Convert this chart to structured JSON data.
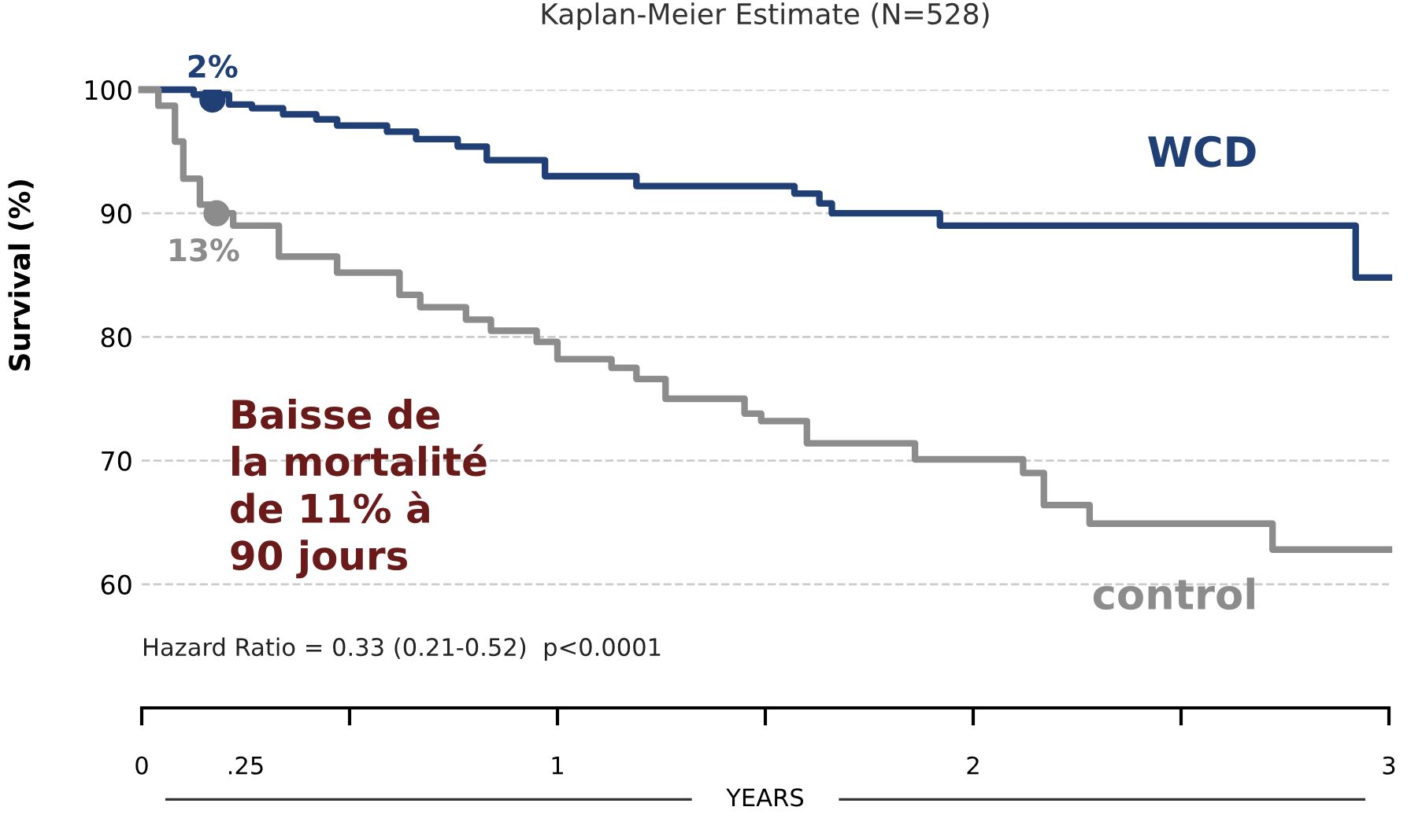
{
  "chart_data": {
    "type": "step",
    "title": "Kaplan-Meier Estimate (N=528)",
    "ylabel": "Survival (%)",
    "xlabel": "YEARS",
    "series": [
      {
        "name": "WCD",
        "color": "#1f3f75",
        "x": [
          0,
          0.125,
          0.21,
          0.265,
          0.34,
          0.42,
          0.47,
          0.59,
          0.66,
          0.76,
          0.83,
          0.97,
          1.19,
          1.57,
          1.63,
          1.66,
          1.92,
          2.92,
          3.0
        ],
        "values": [
          100,
          99.6,
          98.8,
          98.5,
          98.0,
          97.6,
          97.1,
          96.6,
          96.0,
          95.4,
          94.3,
          93.0,
          92.2,
          91.6,
          90.8,
          90.0,
          89.0,
          84.8,
          84.8
        ]
      },
      {
        "name": "control",
        "color": "#8c8c8c",
        "x": [
          0,
          0.04,
          0.08,
          0.1,
          0.14,
          0.18,
          0.22,
          0.33,
          0.47,
          0.62,
          0.67,
          0.78,
          0.84,
          0.95,
          1.0,
          1.13,
          1.19,
          1.26,
          1.45,
          1.49,
          1.6,
          1.86,
          2.12,
          2.17,
          2.28,
          2.72,
          3.0
        ],
        "values": [
          100,
          98.7,
          95.8,
          92.8,
          90.7,
          90.0,
          89.0,
          86.5,
          85.2,
          83.4,
          82.4,
          81.4,
          80.5,
          79.6,
          78.2,
          77.5,
          76.6,
          75.0,
          73.8,
          73.2,
          71.4,
          70.1,
          69.0,
          66.4,
          64.9,
          62.8,
          62.8
        ]
      }
    ],
    "annotations": [
      {
        "text": "2%",
        "x": 0.17,
        "y": 99.2
      },
      {
        "text": "13%",
        "x": 0.18,
        "y": 90.0
      },
      "Baisse de\nla mortalité\nde 11% à\n90 jours",
      "Hazard Ratio = 0.33 (0.21-0.52)  p<0.0001"
    ],
    "xlim": [
      0,
      3
    ],
    "xticks": [
      0,
      {
        "value": 0.25,
        "label": ".25"
      },
      {
        "value": 0.5,
        "label": null
      },
      1,
      {
        "value": 1.5,
        "label": null
      },
      2,
      {
        "value": 2.5,
        "label": null
      },
      3
    ],
    "ylim": [
      50,
      100
    ],
    "yticks": [
      60,
      70,
      80,
      90,
      100
    ],
    "grid": "y",
    "legend": false,
    "line_style": "solid",
    "marker": "none"
  }
}
